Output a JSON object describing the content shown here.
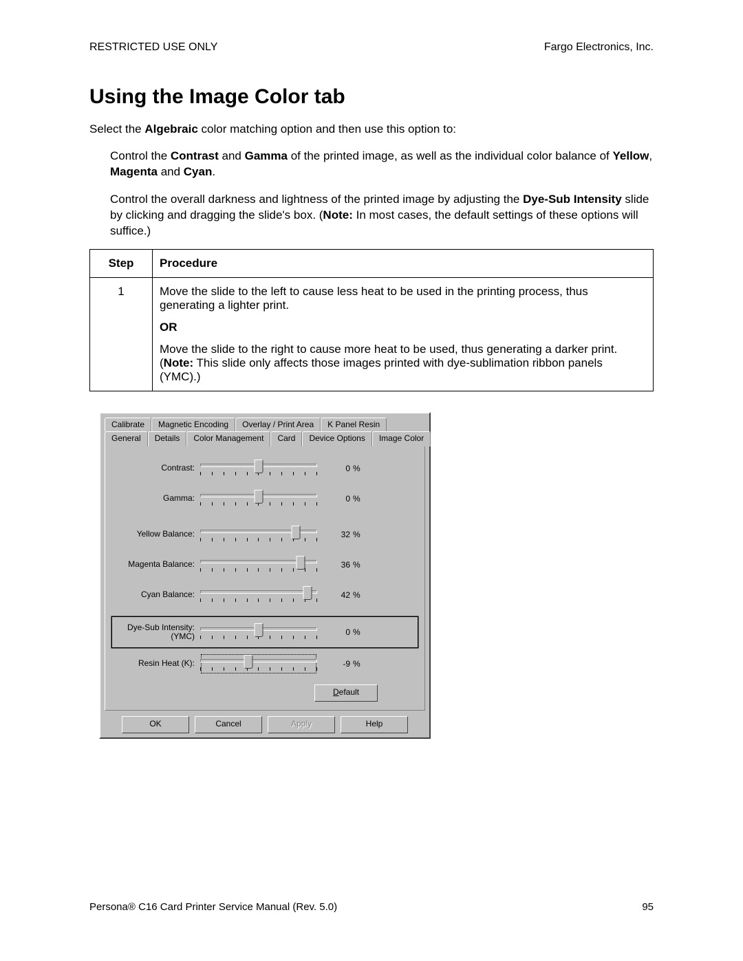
{
  "header": {
    "left": "RESTRICTED USE ONLY",
    "right": "Fargo Electronics, Inc."
  },
  "title": "Using the Image Color tab",
  "intro": {
    "lead": "Select the ",
    "bold1": "Algebraic",
    "tail": " color matching option and then use this option to:"
  },
  "para1": {
    "a": "Control the ",
    "contrast": "Contrast",
    "b": " and ",
    "gamma": "Gamma",
    "c": " of the printed image, as well as the individual color balance of ",
    "yellow": "Yellow",
    "comma1": ", ",
    "magenta": "Magenta",
    "and": " and ",
    "cyan": "Cyan",
    "dot": "."
  },
  "para2": {
    "a": "Control the overall darkness and lightness of the printed image by adjusting the ",
    "dsi": "Dye-Sub Intensity",
    "b": " slide by clicking and dragging the slide's box. (",
    "note": "Note:",
    "c": " In most cases, the default settings of these options will suffice.)"
  },
  "table": {
    "headers": [
      "Step",
      "Procedure"
    ],
    "step": "1",
    "p1": "Move the slide to the left to cause less heat to be used in the printing process, thus generating a lighter print.",
    "or": "OR",
    "p2a": "Move the slide to the right to cause more heat to be used, thus generating a darker print. (",
    "p2note": "Note:",
    "p2b": "  This slide only affects those images printed with dye-sublimation ribbon panels (YMC).)"
  },
  "dialog": {
    "tabs_back": [
      "Calibrate",
      "Magnetic Encoding",
      "Overlay / Print Area",
      "K Panel Resin"
    ],
    "tabs_front": [
      "General",
      "Details",
      "Color Management",
      "Card",
      "Device Options",
      "Image Color"
    ],
    "active_tab_index": 5,
    "sliders": [
      {
        "label": "Contrast:",
        "sublabel": "",
        "value": 0,
        "pct": 50,
        "highlight": false,
        "focus": false
      },
      {
        "label": "Gamma:",
        "sublabel": "",
        "value": 0,
        "pct": 50,
        "highlight": false,
        "focus": false
      },
      {
        "label": "Yellow Balance:",
        "sublabel": "",
        "value": 32,
        "pct": 82,
        "highlight": false,
        "focus": false
      },
      {
        "label": "Magenta Balance:",
        "sublabel": "",
        "value": 36,
        "pct": 86,
        "highlight": false,
        "focus": false
      },
      {
        "label": "Cyan Balance:",
        "sublabel": "",
        "value": 42,
        "pct": 92,
        "highlight": false,
        "focus": false
      },
      {
        "label": "Dye-Sub Intensity:",
        "sublabel": "(YMC)",
        "value": 0,
        "pct": 50,
        "highlight": true,
        "focus": false
      },
      {
        "label": "Resin Heat  (K):",
        "sublabel": "",
        "value": -9,
        "pct": 41,
        "highlight": false,
        "focus": true
      }
    ],
    "unit": "%",
    "tick_count": 11,
    "default_btn": "Default",
    "default_ul": "D",
    "default_rest": "efault",
    "buttons": {
      "ok": "OK",
      "cancel": "Cancel",
      "apply": "Apply",
      "help": "Help"
    },
    "colors": {
      "face": "#c0c0c0",
      "light": "#ffffff",
      "shadow": "#808080",
      "dark": "#404040"
    }
  },
  "footer": {
    "left_a": "Persona",
    "reg": "®",
    "left_b": " C16 Card Printer Service Manual (Rev. 5.0)",
    "page": "95"
  }
}
